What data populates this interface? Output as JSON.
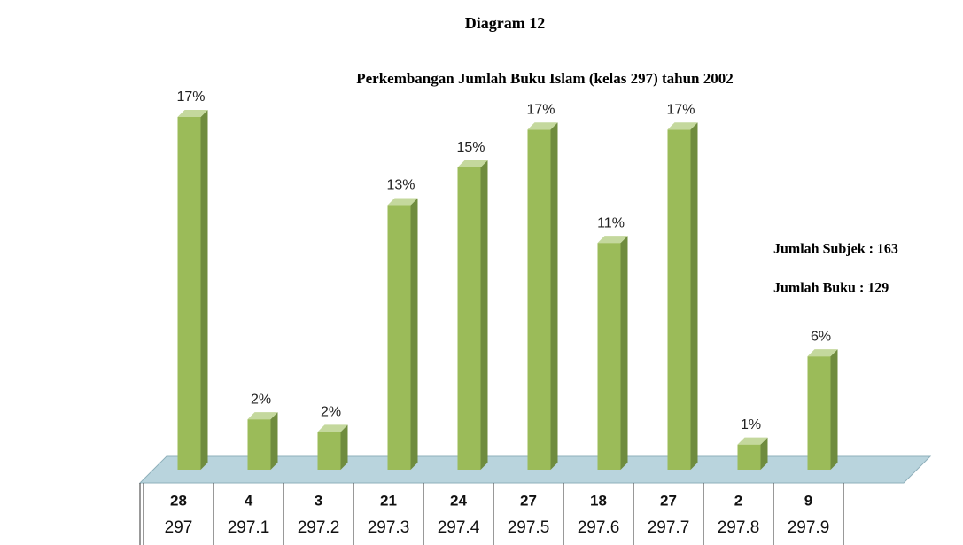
{
  "chart_data": {
    "type": "bar3d",
    "title": "Diagram 12",
    "subtitle": "Perkembangan Jumlah Buku Islam (kelas 297) tahun 2002",
    "annotations": [
      "Jumlah Subjek : 163",
      "Jumlah Buku : 129"
    ],
    "categories": [
      "297",
      "297.1",
      "297.2",
      "297.3",
      "297.4",
      "297.5",
      "297.6",
      "297.7",
      "297.8",
      "297.9"
    ],
    "values": [
      28,
      4,
      3,
      21,
      24,
      27,
      18,
      27,
      2,
      9
    ],
    "percent_labels": [
      "17%",
      "2%",
      "2%",
      "13%",
      "15%",
      "17%",
      "11%",
      "17%",
      "1%",
      "6%"
    ],
    "color": "#9bbb59"
  }
}
